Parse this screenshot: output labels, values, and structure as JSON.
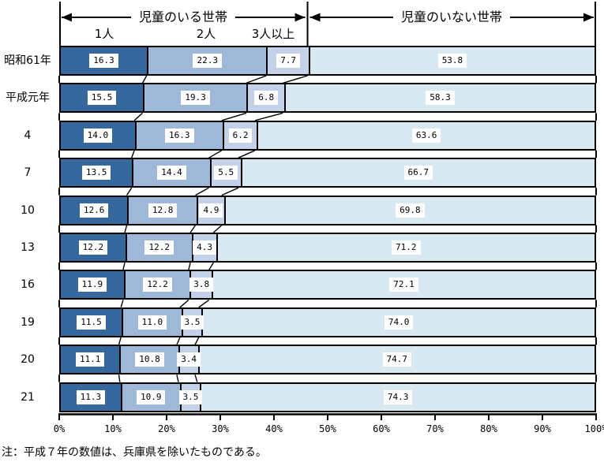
{
  "header": {
    "with_children": "児童のいる世帯",
    "without_children": "児童のいない世帯",
    "sub_labels": [
      "1人",
      "2人",
      "3人以上"
    ]
  },
  "chart_data": {
    "type": "bar",
    "orientation": "horizontal-stacked",
    "categories": [
      "昭和61年",
      "平成元年",
      "4",
      "7",
      "10",
      "13",
      "16",
      "19",
      "20",
      "21"
    ],
    "series": [
      {
        "name": "1人",
        "color": "#36689E",
        "values": [
          16.3,
          15.5,
          14.0,
          13.5,
          12.6,
          12.2,
          11.9,
          11.5,
          11.1,
          11.3
        ]
      },
      {
        "name": "2人",
        "color": "#A0B8D8",
        "values": [
          22.3,
          19.3,
          16.3,
          14.4,
          12.8,
          12.2,
          12.2,
          11.0,
          10.8,
          10.9
        ]
      },
      {
        "name": "3人以上",
        "color": "#C3D2E8",
        "values": [
          7.7,
          6.8,
          6.2,
          5.5,
          4.9,
          4.3,
          3.8,
          3.5,
          3.4,
          3.5
        ]
      },
      {
        "name": "児童のいない世帯",
        "color": "#D9E9F1",
        "values": [
          53.8,
          58.3,
          63.6,
          66.7,
          69.8,
          71.2,
          72.1,
          74.0,
          74.7,
          74.3
        ]
      }
    ],
    "x_ticks": [
      "0%",
      "10%",
      "20%",
      "30%",
      "40%",
      "50%",
      "60%",
      "70%",
      "80%",
      "90%",
      "100%"
    ],
    "xlim": [
      0,
      100
    ],
    "grid": false,
    "legend_position": "top-inline-arrows",
    "border_color": "#000000"
  },
  "note": "注：平成７年の数値は、兵庫県を除いたものである。"
}
